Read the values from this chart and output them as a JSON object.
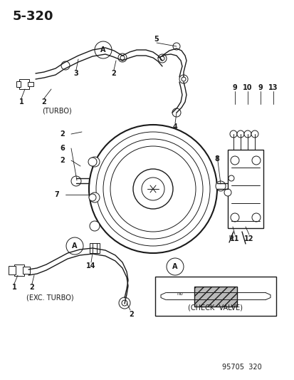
{
  "title": "5-320",
  "bg_color": "#ffffff",
  "line_color": "#1a1a1a",
  "title_fontsize": 13,
  "label_fontsize": 7,
  "footer": "95705  320",
  "section_label_turbo": "(TURBO)",
  "section_label_exc_turbo": "(EXC. TURBO)",
  "check_valve_label": "(CHECK  VALVE)"
}
